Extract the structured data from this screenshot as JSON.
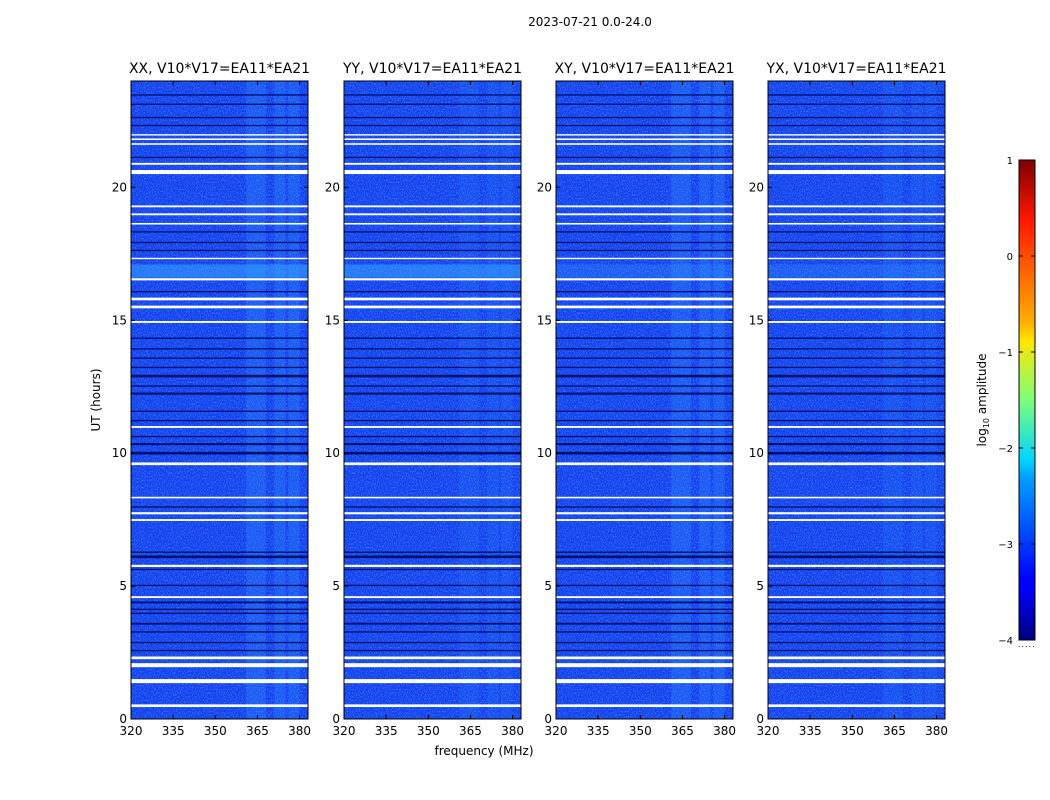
{
  "figure": {
    "suptitle": "2023-07-21 0.0-24.0",
    "xlabel": "frequency (MHz)",
    "ylabel": "UT (hours)"
  },
  "chart_data": {
    "type": "heatmap",
    "title": "2023-07-21 0.0-24.0",
    "xlabel": "frequency (MHz)",
    "ylabel": "UT (hours)",
    "xlim": [
      320,
      383
    ],
    "ylim": [
      0,
      24
    ],
    "xticks": [
      320,
      335,
      350,
      365,
      380
    ],
    "yticks": [
      0,
      5,
      10,
      15,
      20
    ],
    "panels": [
      {
        "title": "XX, V10*V17=EA11*EA21"
      },
      {
        "title": "YY, V10*V17=EA11*EA21"
      },
      {
        "title": "XY, V10*V17=EA11*EA21"
      },
      {
        "title": "YX, V10*V17=EA11*EA21"
      }
    ],
    "colorbar": {
      "label": "log10 amplitude",
      "label_base": "log",
      "label_sub": "10",
      "label_rest": " amplitude",
      "range": [
        -4,
        1
      ],
      "ticks": [
        1,
        0,
        -1,
        -2,
        -3,
        -4
      ],
      "tick_labels": [
        "1",
        "0",
        "−1",
        "−2",
        "−3",
        "−4"
      ],
      "colormap": "jet"
    },
    "flagged_bands_hours": [
      [
        0.45,
        0.55
      ],
      [
        1.35,
        1.5
      ],
      [
        1.95,
        2.1
      ],
      [
        2.25,
        2.35
      ],
      [
        4.55,
        4.62
      ],
      [
        5.72,
        5.8
      ],
      [
        7.45,
        7.52
      ],
      [
        7.7,
        7.78
      ],
      [
        8.3,
        8.36
      ],
      [
        9.55,
        9.65
      ],
      [
        10.95,
        11.02
      ],
      [
        14.9,
        14.97
      ],
      [
        15.45,
        15.55
      ],
      [
        15.75,
        15.85
      ],
      [
        16.5,
        16.58
      ],
      [
        17.3,
        17.35
      ],
      [
        18.6,
        18.66
      ],
      [
        18.95,
        19.02
      ],
      [
        19.25,
        19.32
      ],
      [
        20.5,
        20.65
      ],
      [
        20.85,
        20.92
      ],
      [
        21.6,
        21.66
      ],
      [
        21.78,
        21.84
      ],
      [
        21.95,
        22.0
      ]
    ],
    "dark_lines_hours": [
      [
        2.55,
        2.6
      ],
      [
        2.85,
        2.9
      ],
      [
        3.25,
        3.3
      ],
      [
        3.55,
        3.62
      ],
      [
        3.95,
        4.0
      ],
      [
        4.1,
        4.15
      ],
      [
        4.35,
        4.42
      ],
      [
        5.0,
        5.05
      ],
      [
        5.6,
        5.65
      ],
      [
        6.05,
        6.15
      ],
      [
        6.25,
        6.3
      ],
      [
        7.95,
        8.0
      ],
      [
        9.95,
        10.05
      ],
      [
        10.3,
        10.38
      ],
      [
        10.6,
        10.65
      ],
      [
        11.2,
        11.25
      ],
      [
        11.55,
        11.6
      ],
      [
        12.2,
        12.28
      ],
      [
        12.5,
        12.55
      ],
      [
        12.85,
        12.95
      ],
      [
        13.2,
        13.25
      ],
      [
        13.55,
        13.6
      ],
      [
        13.9,
        13.95
      ],
      [
        14.3,
        14.35
      ],
      [
        16.05,
        16.1
      ],
      [
        17.6,
        17.65
      ],
      [
        17.9,
        17.95
      ],
      [
        18.3,
        18.35
      ],
      [
        21.1,
        21.15
      ],
      [
        22.3,
        22.35
      ],
      [
        22.6,
        22.65
      ],
      [
        23.1,
        23.15
      ],
      [
        23.45,
        23.5
      ]
    ]
  }
}
